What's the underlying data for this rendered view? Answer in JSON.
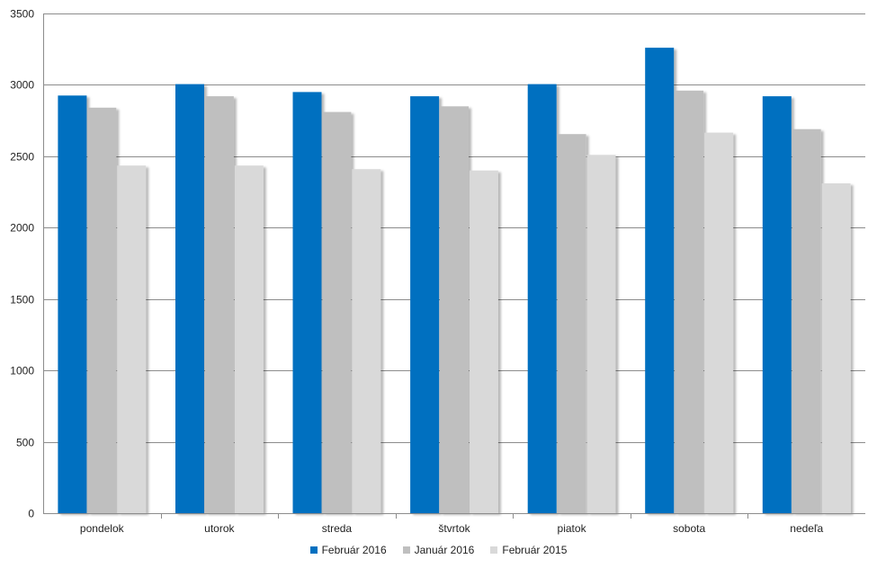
{
  "chart_data": {
    "type": "bar",
    "title": "",
    "xlabel": "",
    "ylabel": "",
    "ylim": [
      0,
      3500
    ],
    "yticks": [
      0,
      500,
      1000,
      1500,
      2000,
      2500,
      3000,
      3500
    ],
    "grid": true,
    "legend_position": "bottom",
    "categories": [
      "pondelok",
      "utorok",
      "streda",
      "štvrtok",
      "piatok",
      "sobota",
      "nedeľa"
    ],
    "series": [
      {
        "name": "Február 2016",
        "color": "#0070C0",
        "values": [
          2925,
          3005,
          2950,
          2920,
          3005,
          3260,
          2920
        ]
      },
      {
        "name": "Január 2016",
        "color": "#BFBFBF",
        "values": [
          2840,
          2920,
          2810,
          2850,
          2655,
          2960,
          2690
        ]
      },
      {
        "name": "Február 2015",
        "color": "#D9D9D9",
        "values": [
          2435,
          2435,
          2410,
          2400,
          2510,
          2665,
          2310
        ]
      }
    ]
  }
}
